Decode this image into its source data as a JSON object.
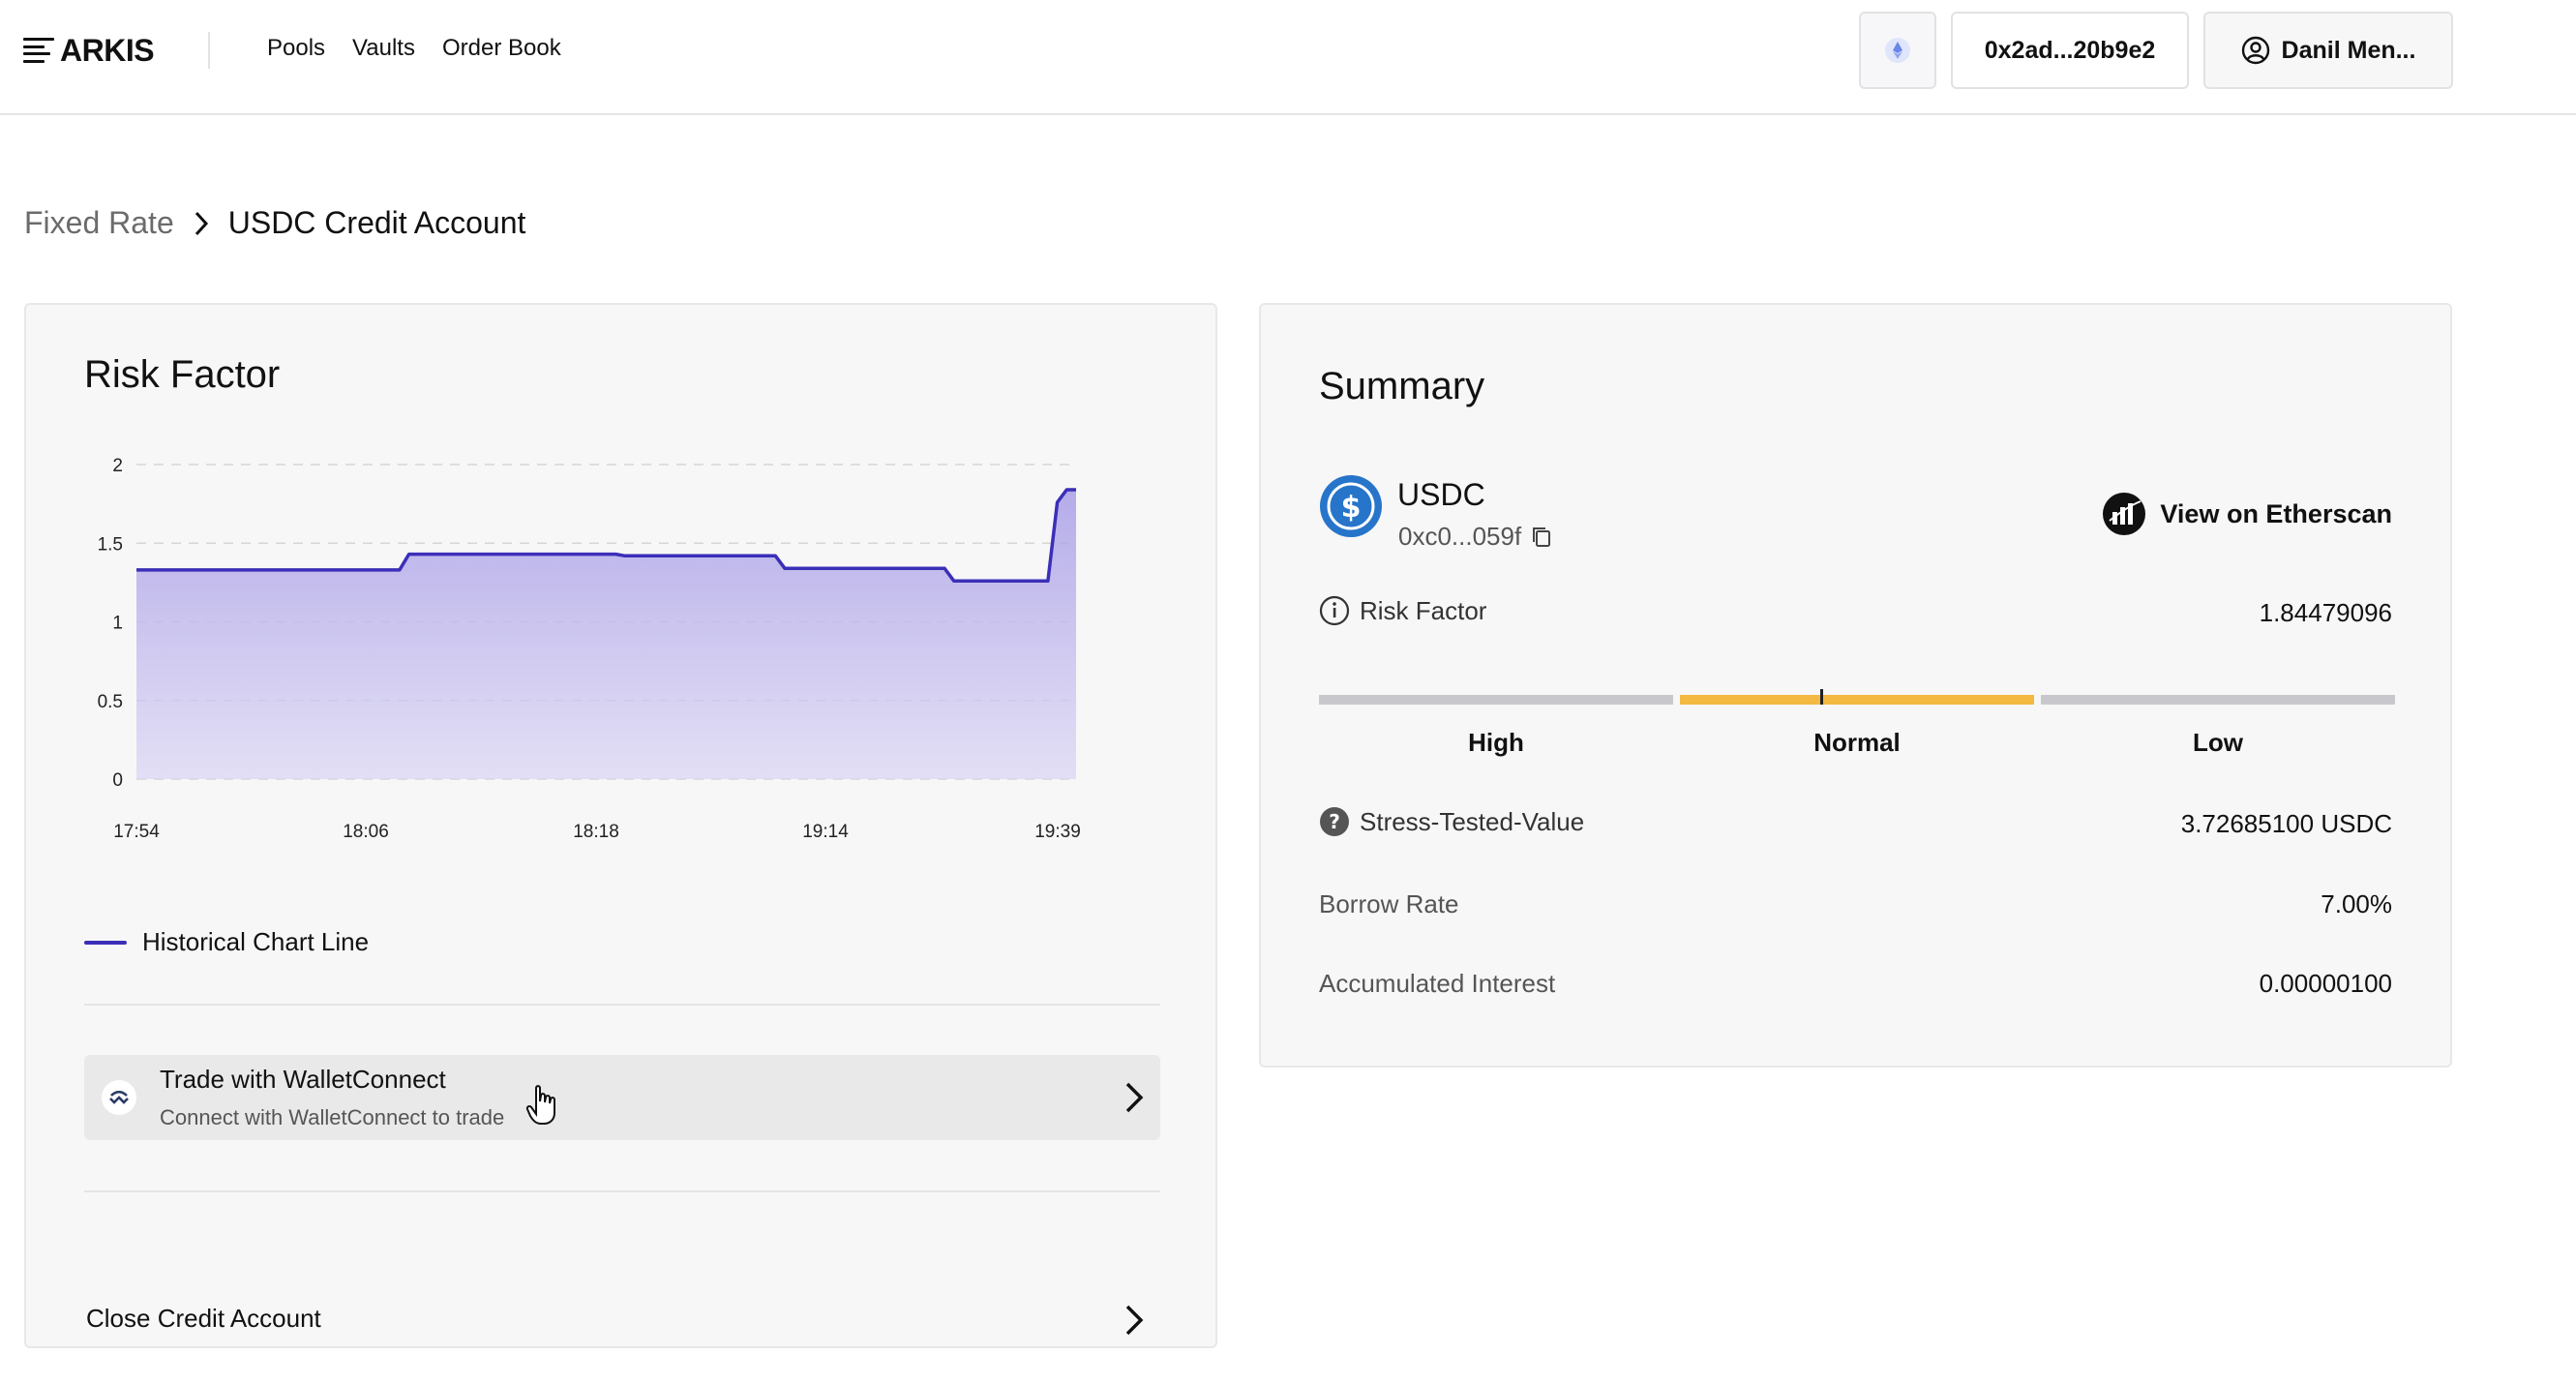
{
  "header": {
    "logo_text": "ARKIS",
    "nav": [
      "Pools",
      "Vaults",
      "Order Book"
    ],
    "network_icon": "ethereum-icon",
    "wallet": "0x2ad...20b9e2",
    "user": "Danil Men..."
  },
  "breadcrumb": {
    "parent": "Fixed Rate",
    "current": "USDC Credit Account"
  },
  "risk_card": {
    "title": "Risk Factor",
    "legend": "Historical Chart Line",
    "trade": {
      "title": "Trade with WalletConnect",
      "subtitle": "Connect with WalletConnect to trade"
    },
    "close_label": "Close Credit Account"
  },
  "summary": {
    "title": "Summary",
    "token": {
      "name": "USDC",
      "address": "0xc0...059f"
    },
    "etherscan_label": "View on Etherscan",
    "risk_factor": {
      "label": "Risk Factor",
      "value": "1.84479096"
    },
    "levels": [
      "High",
      "Normal",
      "Low"
    ],
    "active_level": "Normal",
    "stress_tested": {
      "label": "Stress-Tested-Value",
      "value": "3.72685100 USDC"
    },
    "borrow_rate": {
      "label": "Borrow Rate",
      "value": "7.00%"
    },
    "accumulated_interest": {
      "label": "Accumulated Interest",
      "value": "0.00000100"
    }
  },
  "colors": {
    "line": "#3b2fb8",
    "area": "#b9b2ea",
    "normal_segment": "#f4b942",
    "inactive_segment": "#c8c8cc"
  },
  "chart_data": {
    "type": "area",
    "title": "Risk Factor",
    "xlabel": "",
    "ylabel": "",
    "x_tick_labels": [
      "17:54",
      "18:06",
      "18:18",
      "19:14",
      "19:39"
    ],
    "y_ticks": [
      0,
      0.5,
      1,
      1.5,
      2
    ],
    "ylim": [
      0,
      2
    ],
    "grid": true,
    "legend": "bottom-left",
    "series": [
      {
        "name": "Historical Chart Line",
        "points": [
          [
            0,
            1.33
          ],
          [
            0.28,
            1.33
          ],
          [
            0.29,
            1.43
          ],
          [
            0.51,
            1.43
          ],
          [
            0.52,
            1.42
          ],
          [
            0.68,
            1.42
          ],
          [
            0.69,
            1.34
          ],
          [
            0.86,
            1.34
          ],
          [
            0.87,
            1.26
          ],
          [
            0.97,
            1.26
          ],
          [
            0.98,
            1.76
          ],
          [
            0.99,
            1.84
          ],
          [
            1.0,
            1.84
          ]
        ]
      }
    ]
  }
}
